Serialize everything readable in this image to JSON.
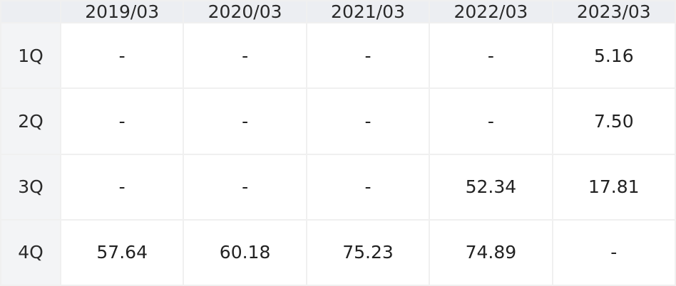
{
  "chart_data": {
    "type": "table",
    "columns": [
      "2019/03",
      "2020/03",
      "2021/03",
      "2022/03",
      "2023/03"
    ],
    "rows": [
      {
        "label": "1Q",
        "values": [
          "-",
          "-",
          "-",
          "-",
          "5.16"
        ]
      },
      {
        "label": "2Q",
        "values": [
          "-",
          "-",
          "-",
          "-",
          "7.50"
        ]
      },
      {
        "label": "3Q",
        "values": [
          "-",
          "-",
          "-",
          "52.34",
          "17.81"
        ]
      },
      {
        "label": "4Q",
        "values": [
          "57.64",
          "60.18",
          "75.23",
          "74.89",
          "-"
        ]
      }
    ]
  }
}
